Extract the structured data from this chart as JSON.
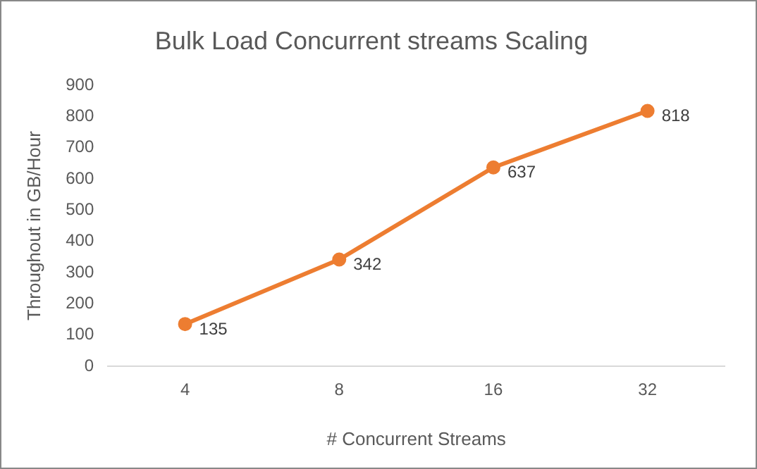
{
  "chart_data": {
    "type": "line",
    "title": "Bulk Load Concurrent streams Scaling",
    "xlabel": "# Concurrent Streams",
    "ylabel": "Throughout in GB/Hour",
    "categories": [
      "4",
      "8",
      "16",
      "32"
    ],
    "series": [
      {
        "color": "#ed7d31",
        "values": [
          135,
          342,
          637,
          818
        ]
      }
    ],
    "ylim": [
      0,
      900
    ],
    "yticks": [
      0,
      100,
      200,
      300,
      400,
      500,
      600,
      700,
      800,
      900
    ],
    "grid": false,
    "legend": false,
    "marker": "circle",
    "line_style": "solid",
    "data_labels": true
  }
}
